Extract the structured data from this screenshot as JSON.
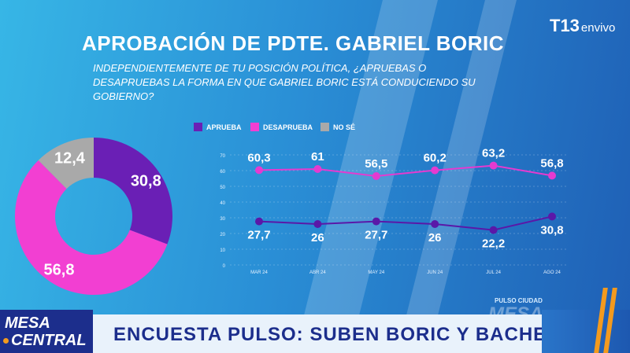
{
  "header": {
    "title": "APROBACIÓN DE PDTE. GABRIEL BORIC",
    "question": "INDEPENDIENTEMENTE DE TU POSICIÓN POLÍTICA, ¿APRUEBAS O DESAPRUEBAS LA FORMA EN QUE GABRIEL BORIC ESTÁ CONDUCIENDO SU GOBIERNO?"
  },
  "brand": {
    "logo": "T13",
    "live": "envivo"
  },
  "chart_data": [
    {
      "type": "pie",
      "subtype": "donut",
      "labels": [
        "Aprueba",
        "Desaprueba",
        "No sé"
      ],
      "values": [
        30.8,
        56.8,
        12.4
      ],
      "value_labels": [
        "30,8",
        "56,8",
        "12,4"
      ],
      "colors": [
        "#6a1fb5",
        "#f23fd2",
        "#a9a9a9"
      ]
    },
    {
      "type": "line",
      "categories": [
        "MAR 24",
        "ABR 24",
        "MAY 24",
        "JUN 24",
        "JUL 24",
        "AGO 24"
      ],
      "series": [
        {
          "name": "APRUEBA",
          "values": [
            27.7,
            26,
            27.7,
            26,
            22.2,
            30.8
          ],
          "labels": [
            "27,7",
            "26",
            "27,7",
            "26",
            "22,2",
            "30,8"
          ],
          "color": "#5a18a8"
        },
        {
          "name": "DESAPRUEBA",
          "values": [
            60.3,
            61,
            56.5,
            60.2,
            63.2,
            56.8
          ],
          "labels": [
            "60,3",
            "61",
            "56,5",
            "60,2",
            "63,2",
            "56,8"
          ],
          "color": "#e53ad0"
        }
      ],
      "ylim": [
        0,
        70
      ],
      "yticks": [
        "0",
        "10",
        "20",
        "30",
        "40",
        "50",
        "60",
        "70"
      ],
      "legend": [
        {
          "label": "APRUEBA",
          "color": "#6a1fb5"
        },
        {
          "label": "DESAPRUEBA",
          "color": "#f23fd2"
        },
        {
          "label": "NO SÉ",
          "color": "#a9a9a9"
        }
      ]
    }
  ],
  "lower_third": {
    "show_line1": "MESA",
    "show_line2": "CENTRAL",
    "headline": "ENCUESTA PULSO: SUBEN BORIC Y BACHELET",
    "source_small": "PULSO CIUDAD",
    "source_big": "MESA"
  }
}
